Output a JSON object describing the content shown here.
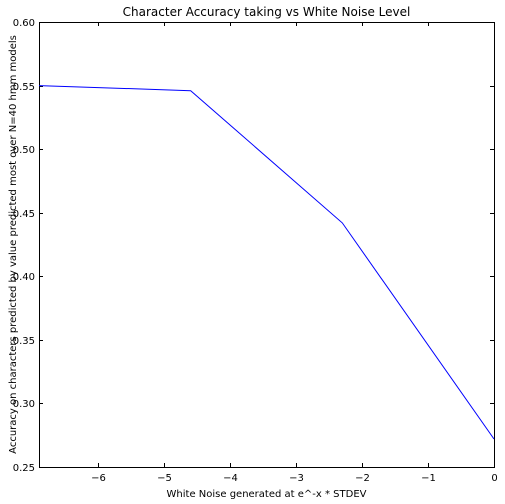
{
  "chart_data": {
    "type": "line",
    "title": "Character Accuracy taking vs White Noise Level",
    "xlabel": "White Noise generated at e^-x * STDEV",
    "ylabel": "Accuracy on characters predicted by value predicted most over N=40 hmm models",
    "xlim": [
      -6.9,
      0
    ],
    "ylim": [
      0.25,
      0.6
    ],
    "xticks": [
      -6,
      -5,
      -4,
      -3,
      -2,
      -1,
      0
    ],
    "xtick_labels": [
      "−6",
      "−5",
      "−4",
      "−3",
      "−2",
      "−1",
      "0"
    ],
    "yticks": [
      0.25,
      0.3,
      0.35,
      0.4,
      0.45,
      0.5,
      0.55,
      0.6
    ],
    "ytick_labels": [
      "0.25",
      "0.30",
      "0.35",
      "0.40",
      "0.45",
      "0.50",
      "0.55",
      "0.60"
    ],
    "grid": false,
    "series": [
      {
        "color": "#0000ff",
        "x": [
          -6.9,
          -4.6,
          -2.3,
          0
        ],
        "y": [
          0.55,
          0.546,
          0.442,
          0.272
        ]
      }
    ]
  }
}
